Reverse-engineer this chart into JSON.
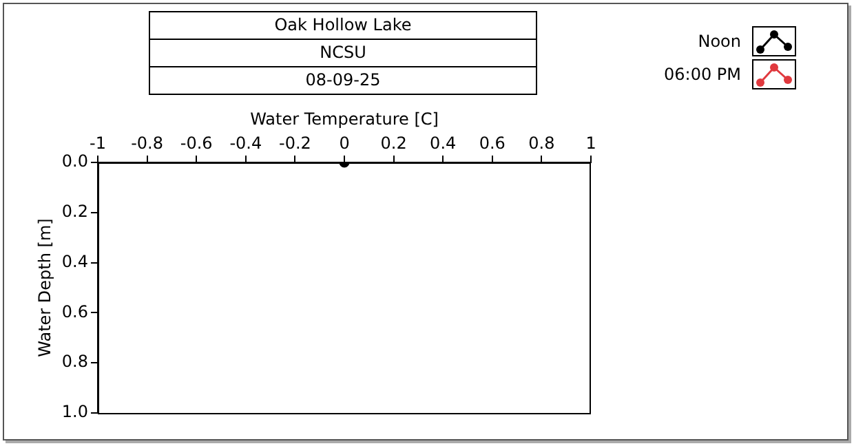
{
  "chart_data": {
    "type": "line",
    "title": "Oak Hollow Lake",
    "subtitle": "NCSU",
    "annotations": [
      "08-09-25"
    ],
    "xlabel": "Water Temperature [C]",
    "ylabel": "Water Depth [m]",
    "xlim": [
      -1,
      1
    ],
    "xticks": [
      -1,
      -0.8,
      -0.6,
      -0.4,
      -0.2,
      0,
      0.2,
      0.4,
      0.6,
      0.8,
      1
    ],
    "ylim": [
      1,
      0
    ],
    "yticks": [
      {
        "value": 0,
        "label": "0.0"
      },
      {
        "value": 0.2,
        "label": "0.2"
      },
      {
        "value": 0.4,
        "label": "0.4"
      },
      {
        "value": 0.6,
        "label": "0.6"
      },
      {
        "value": 0.8,
        "label": "0.8"
      },
      {
        "value": 1,
        "label": "1.0"
      }
    ],
    "grid": false,
    "legend": "top right",
    "marker": "circle",
    "line_style": "solid",
    "series": [
      {
        "name": "Noon",
        "color": "#000000",
        "x": [
          0
        ],
        "values": [
          0
        ]
      },
      {
        "name": "06:00 PM",
        "color": "#e0393e"
      }
    ]
  }
}
